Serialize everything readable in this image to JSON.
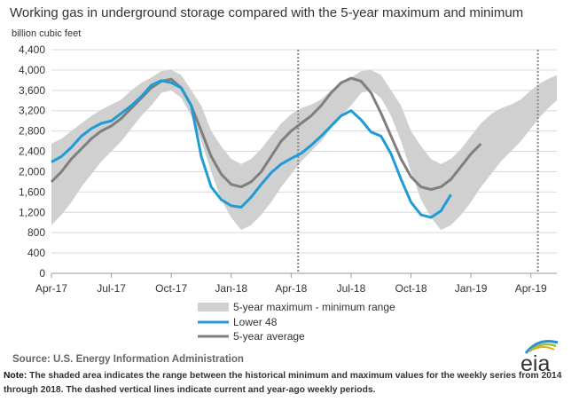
{
  "title": "Working gas in underground  storage compared with the 5-year maximum and minimum",
  "source": "Source:  U.S. Energy Information Administration",
  "note_label": "Note:",
  "note_text": " The shaded area indicates the range between the historical minimum and maximum values for the weekly series from 2014 through 2018. The dashed vertical lines indicate current and year-ago weekly periods.",
  "logo_text": "eia",
  "colors": {
    "range": "#d0d0d0",
    "lower48": "#1f9bd7",
    "avg": "#7f7f7f",
    "grid": "#d9d9d9"
  },
  "chart_data": {
    "type": "line",
    "ylabel": "billion cubic feet",
    "ylim": [
      0,
      4400
    ],
    "yticks": [
      "0",
      "400",
      "800",
      "1,200",
      "1,600",
      "2,000",
      "2,400",
      "2,800",
      "3,200",
      "3,600",
      "4,000",
      "4,400"
    ],
    "x_tick_labels": [
      "Apr-17",
      "Jul-17",
      "Oct-17",
      "Jan-18",
      "Apr-18",
      "Jul-18",
      "Oct-18",
      "Jan-19",
      "Apr-19"
    ],
    "x_range_months": [
      0,
      25.3
    ],
    "x": [
      0,
      0.5,
      1,
      1.5,
      2,
      2.5,
      3,
      3.5,
      4,
      4.5,
      5,
      5.5,
      6,
      6.5,
      7,
      7.5,
      8,
      8.5,
      9,
      9.5,
      10,
      10.5,
      11,
      11.5,
      12,
      12.5,
      13,
      13.5,
      14,
      14.5,
      15,
      15.5,
      16,
      16.5,
      17,
      17.5,
      18,
      18.5,
      19,
      19.5,
      20,
      20.5,
      21,
      21.5,
      22,
      22.5,
      23,
      23.5,
      24,
      24.5,
      25,
      25.3
    ],
    "legend": [
      "5-year maximum - minimum range",
      "Lower 48",
      "5-year average"
    ],
    "series": [
      {
        "name": "5-year maximum - minimum range",
        "kind": "band",
        "upper": [
          2550,
          2650,
          2800,
          2950,
          3100,
          3220,
          3320,
          3420,
          3600,
          3750,
          3850,
          3980,
          4000,
          3900,
          3600,
          3300,
          2800,
          2500,
          2250,
          2150,
          2250,
          2450,
          2700,
          2950,
          3130,
          3250,
          3320,
          3420,
          3600,
          3750,
          3850,
          3980,
          4000,
          3900,
          3600,
          3300,
          2800,
          2500,
          2250,
          2150,
          2250,
          2450,
          2700,
          2950,
          3130,
          3250,
          3320,
          3420,
          3600,
          3750,
          3850,
          3900
        ],
        "lower": [
          950,
          1150,
          1400,
          1700,
          1950,
          2200,
          2400,
          2600,
          2850,
          3100,
          3300,
          3550,
          3600,
          3450,
          3100,
          2600,
          2000,
          1450,
          1100,
          850,
          950,
          1150,
          1400,
          1700,
          1950,
          2200,
          2400,
          2600,
          2850,
          3100,
          3300,
          3550,
          3600,
          3450,
          3100,
          2600,
          2000,
          1450,
          1100,
          850,
          950,
          1150,
          1400,
          1700,
          1950,
          2200,
          2400,
          2600,
          2850,
          3100,
          3300,
          3400
        ]
      },
      {
        "name": "Lower 48",
        "kind": "line",
        "values": [
          2190,
          2300,
          2480,
          2700,
          2850,
          2950,
          3000,
          3150,
          3300,
          3480,
          3700,
          3790,
          3750,
          3650,
          3300,
          2300,
          1700,
          1450,
          1330,
          1300,
          1500,
          1750,
          1980,
          2150,
          2260,
          2360,
          2520,
          2700,
          2900,
          3100,
          3200,
          3020,
          2780,
          2700,
          2350,
          1850,
          1400,
          1150,
          1100,
          1230,
          1550,
          null,
          null,
          null,
          null,
          null,
          null,
          null,
          null,
          null,
          null,
          null
        ]
      },
      {
        "name": "5-year average",
        "kind": "line",
        "values": [
          1800,
          2000,
          2250,
          2450,
          2650,
          2800,
          2900,
          3050,
          3250,
          3450,
          3650,
          3780,
          3820,
          3650,
          3300,
          2800,
          2300,
          1950,
          1750,
          1700,
          1800,
          2000,
          2300,
          2600,
          2800,
          2950,
          3100,
          3300,
          3550,
          3750,
          3840,
          3780,
          3550,
          3150,
          2700,
          2250,
          1900,
          1700,
          1650,
          1700,
          1850,
          2100,
          2350,
          2550,
          null,
          null,
          null,
          null,
          null,
          null,
          null,
          null
        ]
      }
    ],
    "dashed_vertical_lines_at_month": [
      12.35,
      24.35
    ],
    "grid": "horizontal",
    "legend_placement": "bottom-center"
  }
}
